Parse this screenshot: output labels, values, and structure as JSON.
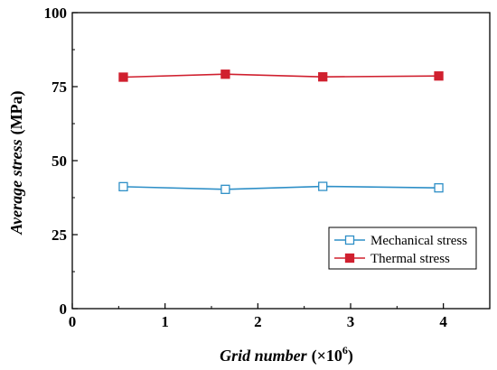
{
  "chart_data": {
    "type": "line",
    "xlabel": "Grid number (×10⁶)",
    "xlabel_main": "Grid number",
    "xlabel_unit": "(×10",
    "xlabel_sup": "6",
    "xlabel_close": ")",
    "ylabel": "Average stress (MPa)",
    "ylabel_main": "Average stress",
    "ylabel_unit": "(MPa)",
    "xlim": [
      0,
      4.5
    ],
    "ylim": [
      0,
      100
    ],
    "xticks": [
      0,
      1,
      2,
      3,
      4
    ],
    "yticks": [
      0,
      25,
      50,
      75,
      100
    ],
    "grid": false,
    "legend_position": "bottom-right",
    "series": [
      {
        "name": "Mechanical stress",
        "color": "#2e8fc7",
        "marker": "open-square",
        "x": [
          0.55,
          1.65,
          2.7,
          3.95
        ],
        "y": [
          41.2,
          40.3,
          41.3,
          40.8
        ]
      },
      {
        "name": "Thermal stress",
        "color": "#d0202f",
        "marker": "filled-square",
        "x": [
          0.55,
          1.65,
          2.7,
          3.95
        ],
        "y": [
          78.2,
          79.2,
          78.3,
          78.6
        ]
      }
    ]
  }
}
